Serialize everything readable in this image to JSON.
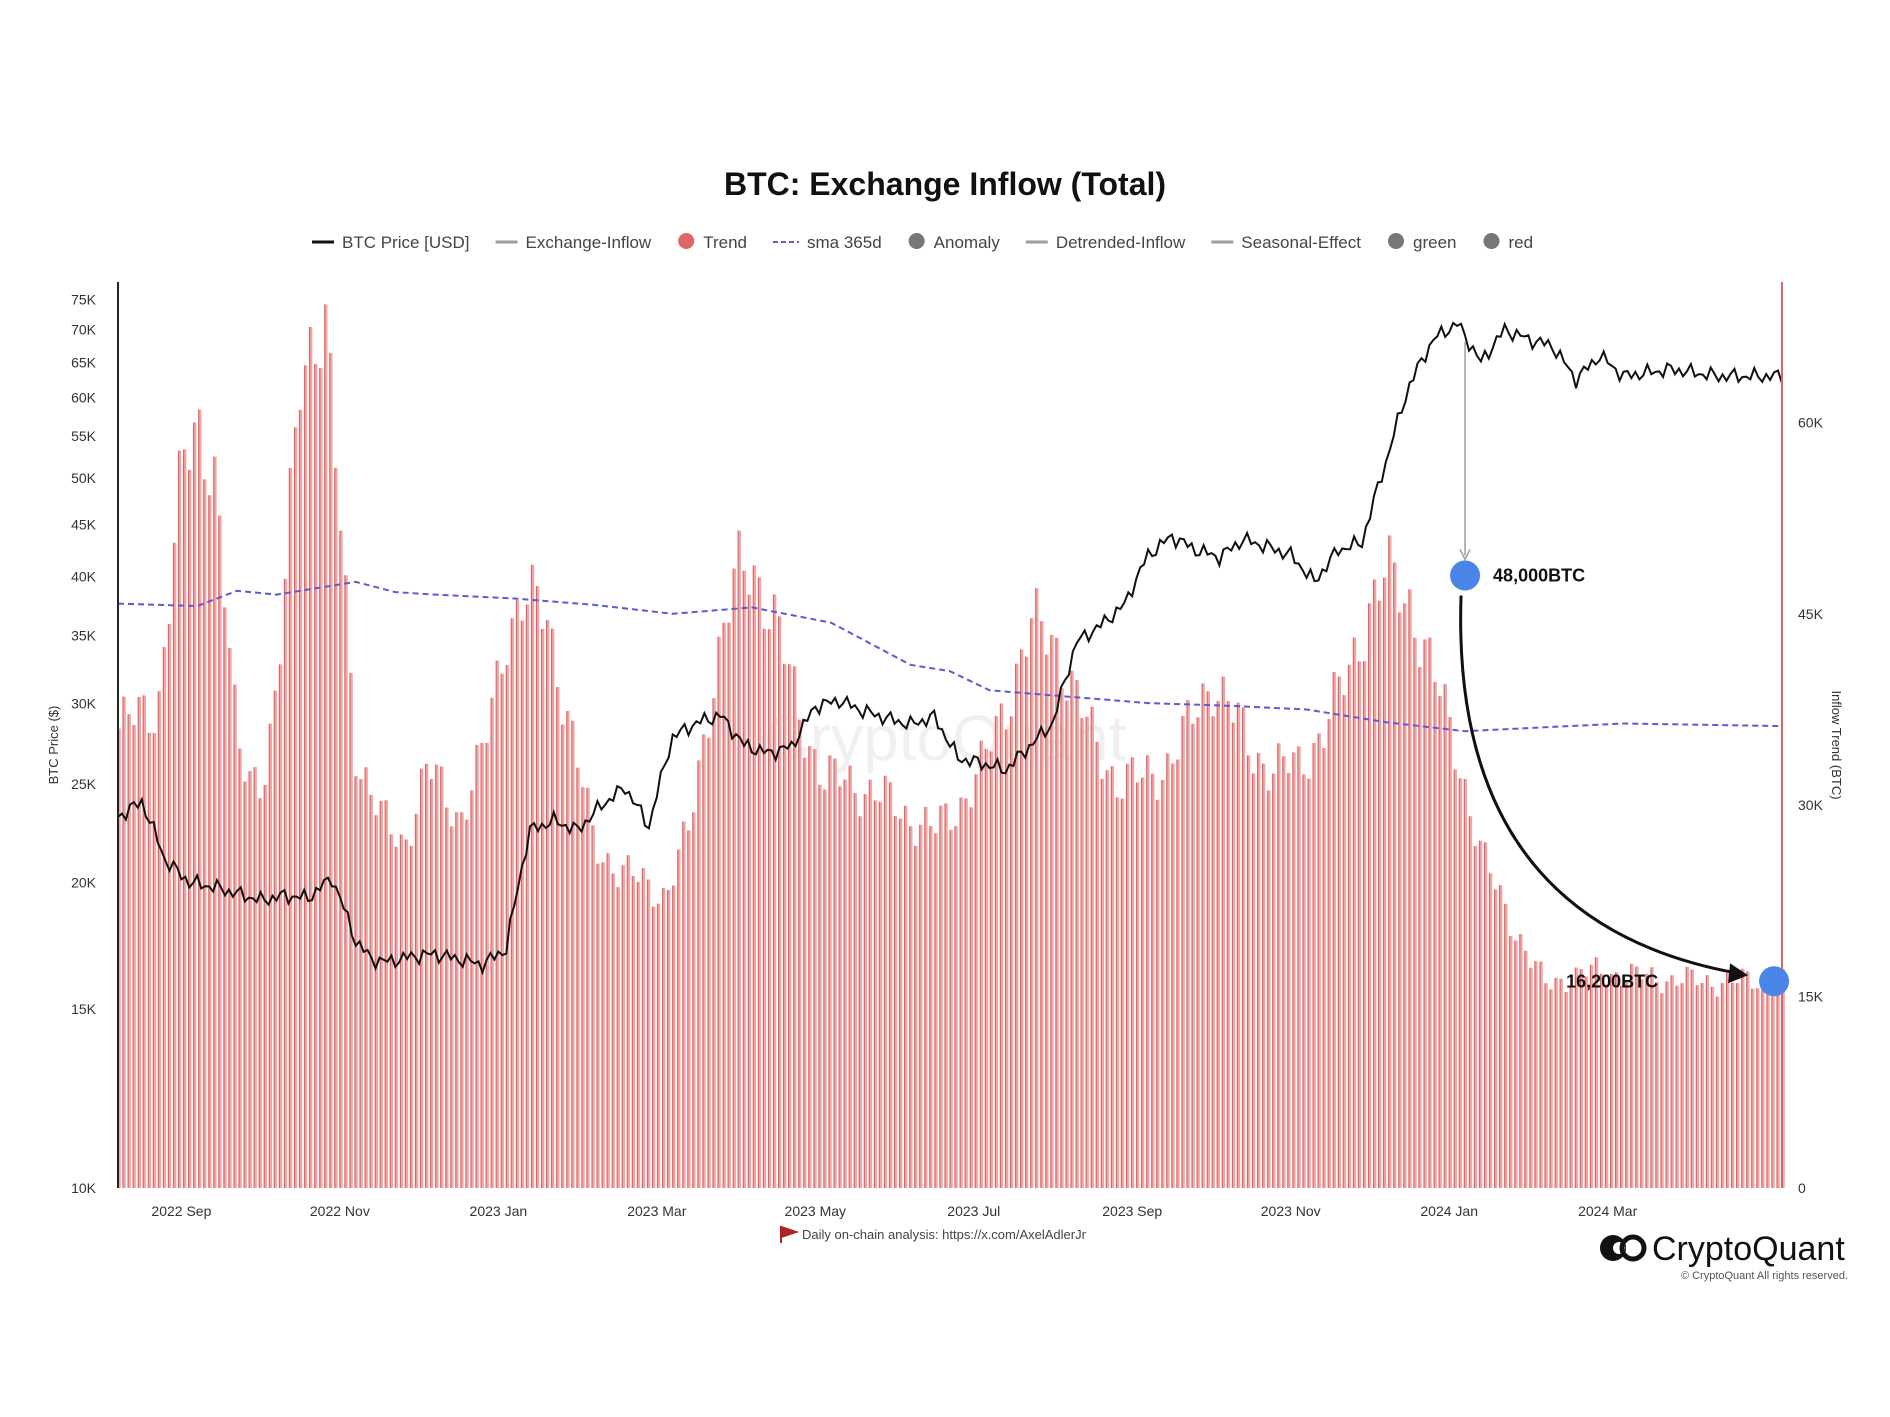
{
  "chart_data": {
    "type": "bar",
    "title": "BTC: Exchange Inflow (Total)",
    "legend": [
      {
        "label": "BTC Price [USD]",
        "marker": "line",
        "color": "#111111"
      },
      {
        "label": "Exchange-Inflow",
        "marker": "line",
        "color": "#9e9e9e"
      },
      {
        "label": "Trend",
        "marker": "dot",
        "color": "#e06666"
      },
      {
        "label": "sma 365d",
        "marker": "dash",
        "color": "#5b5bd6"
      },
      {
        "label": "Anomaly",
        "marker": "dot",
        "color": "#777777"
      },
      {
        "label": "Detrended-Inflow",
        "marker": "line",
        "color": "#9e9e9e"
      },
      {
        "label": "Seasonal-Effect",
        "marker": "line",
        "color": "#9e9e9e"
      },
      {
        "label": "green",
        "marker": "dot",
        "color": "#777777"
      },
      {
        "label": "red",
        "marker": "dot",
        "color": "#777777"
      }
    ],
    "x_ticks": [
      "2022 Sep",
      "2022 Nov",
      "2023 Jan",
      "2023 Mar",
      "2023 May",
      "2023 Jul",
      "2023 Sep",
      "2023 Nov",
      "2024 Jan",
      "2024 Mar"
    ],
    "x_range_months": [
      0,
      21
    ],
    "left_axis": {
      "label": "BTC Price ($)",
      "scale": "log",
      "range": [
        10000,
        78000
      ],
      "ticks": [
        {
          "v": 10000,
          "label": "10K"
        },
        {
          "v": 15000,
          "label": "15K"
        },
        {
          "v": 20000,
          "label": "20K"
        },
        {
          "v": 25000,
          "label": "25K"
        },
        {
          "v": 30000,
          "label": "30K"
        },
        {
          "v": 35000,
          "label": "35K"
        },
        {
          "v": 40000,
          "label": "40K"
        },
        {
          "v": 45000,
          "label": "45K"
        },
        {
          "v": 50000,
          "label": "50K"
        },
        {
          "v": 55000,
          "label": "55K"
        },
        {
          "v": 60000,
          "label": "60K"
        },
        {
          "v": 65000,
          "label": "65K"
        },
        {
          "v": 70000,
          "label": "70K"
        },
        {
          "v": 75000,
          "label": "75K"
        }
      ]
    },
    "right_axis": {
      "label": "Inflow Trend (BTC)",
      "scale": "linear",
      "range": [
        0,
        71000
      ],
      "ticks": [
        {
          "v": 0,
          "label": "0"
        },
        {
          "v": 15000,
          "label": "15K"
        },
        {
          "v": 30000,
          "label": "30K"
        },
        {
          "v": 45000,
          "label": "45K"
        },
        {
          "v": 60000,
          "label": "60K"
        }
      ]
    },
    "series": [
      {
        "name": "Trend",
        "kind": "bars",
        "color": "#e06666",
        "x": [
          0,
          0.5,
          0.8,
          1.0,
          1.2,
          1.5,
          1.8,
          2.0,
          2.3,
          2.6,
          2.8,
          3.0,
          3.3,
          3.6,
          3.9,
          4.1,
          4.3,
          4.6,
          4.9,
          5.1,
          5.4,
          5.7,
          6.0,
          6.3,
          6.6,
          6.9,
          7.2,
          7.5,
          7.8,
          8.0,
          8.3,
          8.6,
          8.9,
          9.2,
          9.5,
          9.8,
          10.0,
          10.3,
          10.6,
          10.9,
          11.2,
          11.5,
          11.8,
          12.0,
          12.3,
          12.6,
          12.9,
          13.2,
          13.5,
          13.8,
          14.0,
          14.3,
          14.6,
          14.9,
          15.2,
          15.5,
          15.8,
          16.0,
          16.3,
          16.6,
          16.9,
          17.2,
          17.5,
          17.8,
          18.0,
          18.3,
          18.6,
          18.9,
          19.2,
          19.5,
          19.8,
          20.0,
          20.3,
          20.6,
          20.9
        ],
        "values": [
          36000,
          38000,
          56000,
          60000,
          57000,
          34000,
          32000,
          38000,
          66000,
          67000,
          52000,
          34000,
          29000,
          27000,
          33000,
          31000,
          29000,
          34000,
          44000,
          46000,
          45000,
          36000,
          27000,
          25000,
          24000,
          23000,
          28000,
          40000,
          48000,
          49000,
          44000,
          37000,
          32000,
          32000,
          31000,
          30000,
          29000,
          28000,
          30000,
          33000,
          38000,
          44000,
          43000,
          40000,
          35000,
          32000,
          32000,
          33000,
          36000,
          40000,
          38000,
          34000,
          33000,
          33000,
          36000,
          40000,
          46000,
          48000,
          46000,
          40000,
          34000,
          26000,
          22000,
          18000,
          16000,
          16500,
          17000,
          16800,
          16600,
          16400,
          16300,
          16200,
          16200,
          16200,
          16200
        ]
      },
      {
        "name": "sma 365d",
        "kind": "dashed-line",
        "color": "#5b5bd6",
        "x": [
          0,
          1,
          1.5,
          2,
          3,
          3.5,
          4,
          5,
          6,
          7,
          8,
          9,
          10,
          10.5,
          11,
          12,
          13,
          14,
          15,
          16,
          17,
          18,
          19,
          20,
          21
        ],
        "values": [
          45800,
          45600,
          46800,
          46500,
          47500,
          46700,
          46500,
          46200,
          45700,
          45000,
          45500,
          44300,
          41000,
          40500,
          39000,
          38500,
          38000,
          37800,
          37500,
          36500,
          35800,
          36100,
          36400,
          36300,
          36200
        ]
      },
      {
        "name": "BTC Price [USD]",
        "kind": "line",
        "color": "#111111",
        "axis": "left",
        "x": [
          0,
          0.3,
          0.6,
          0.9,
          1.2,
          1.5,
          1.8,
          2.1,
          2.4,
          2.7,
          3.0,
          3.2,
          3.4,
          3.7,
          4.0,
          4.3,
          4.6,
          4.9,
          5.2,
          5.5,
          5.8,
          6.1,
          6.4,
          6.7,
          7.0,
          7.3,
          7.6,
          7.9,
          8.2,
          8.5,
          8.8,
          9.1,
          9.4,
          9.7,
          10.0,
          10.3,
          10.6,
          10.9,
          11.2,
          11.5,
          11.8,
          12.1,
          12.4,
          12.7,
          13.0,
          13.3,
          13.6,
          13.9,
          14.2,
          14.5,
          14.8,
          15.1,
          15.4,
          15.7,
          16.0,
          16.3,
          16.6,
          16.9,
          17.2,
          17.5,
          17.8,
          18.1,
          18.4,
          18.7,
          19.0,
          19.3,
          19.6,
          19.9,
          20.2,
          20.5,
          20.8,
          21.0
        ],
        "values": [
          23200,
          24000,
          21000,
          20000,
          19800,
          19500,
          19200,
          19400,
          19300,
          20200,
          17500,
          16800,
          16700,
          16900,
          17000,
          16800,
          16600,
          17200,
          22500,
          23000,
          22500,
          23800,
          24800,
          22700,
          27800,
          28700,
          29200,
          27300,
          26800,
          27200,
          29800,
          30200,
          29500,
          29000,
          28600,
          29100,
          26500,
          26200,
          25800,
          27200,
          28700,
          34500,
          35800,
          37500,
          42000,
          43800,
          42500,
          41800,
          43500,
          42800,
          42000,
          39500,
          42500,
          43200,
          51800,
          61800,
          68500,
          71000,
          65000,
          70000,
          68500,
          67500,
          62500,
          66000,
          63000,
          63500,
          64000,
          63500,
          63000,
          63000,
          63000,
          63000
        ]
      }
    ],
    "annotations": [
      {
        "label": "48,000BTC",
        "x": 17.0,
        "value": 48000,
        "color": "#4a86e8"
      },
      {
        "label": "16,200BTC",
        "x": 20.9,
        "value": 16200,
        "color": "#4a86e8"
      }
    ],
    "watermark": "CryptoQuant",
    "grid": false
  },
  "footer": {
    "note": "Daily on-chain analysis: https://x.com/AxelAdlerJr",
    "brand": "CryptoQuant",
    "copyright": "© CryptoQuant All rights reserved."
  },
  "colors": {
    "bars": "#e06666",
    "bars_fill": "#efa7a7",
    "price_line": "#111111",
    "sma_line": "#5b5bd6",
    "marker": "#4a86e8"
  }
}
